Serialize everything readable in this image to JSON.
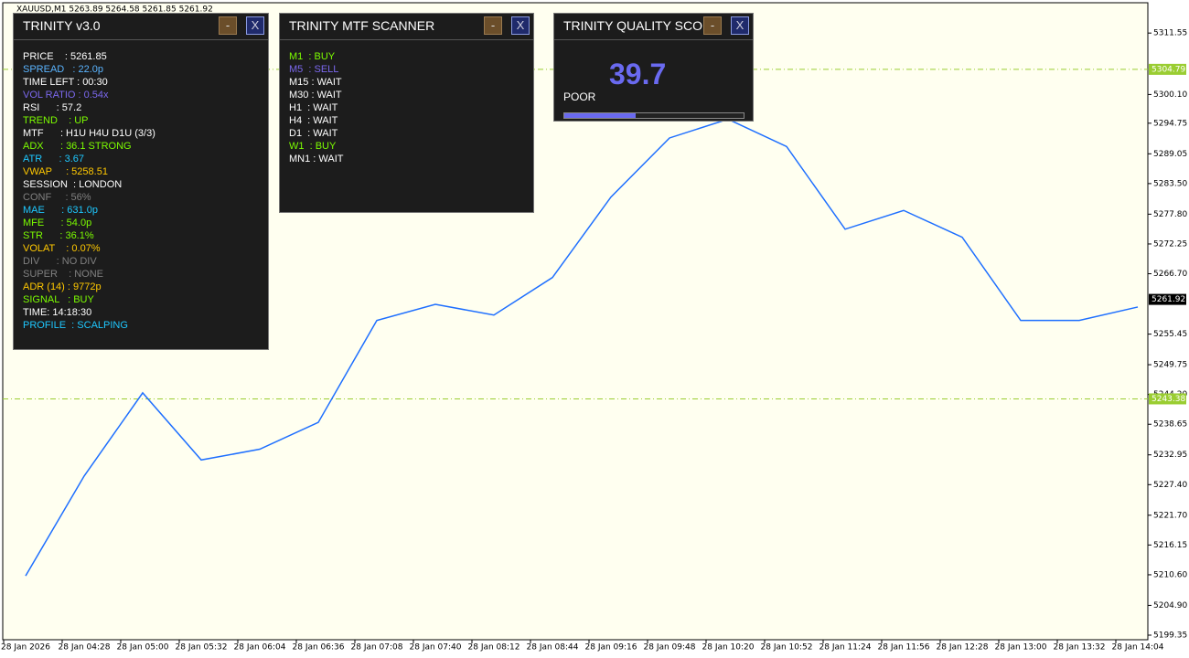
{
  "window_title": "XAUUSD,M1  5263.89 5264.58 5261.85 5261.92",
  "chart_data": {
    "type": "line",
    "categories": [
      "28 Jan 2026",
      "28 Jan 04:28",
      "28 Jan 05:00",
      "28 Jan 05:32",
      "28 Jan 06:04",
      "28 Jan 06:36",
      "28 Jan 07:08",
      "28 Jan 07:40",
      "28 Jan 08:12",
      "28 Jan 08:44",
      "28 Jan 09:16",
      "28 Jan 09:48",
      "28 Jan 10:20",
      "28 Jan 10:52",
      "28 Jan 11:24",
      "28 Jan 11:56",
      "28 Jan 12:28",
      "28 Jan 13:00",
      "28 Jan 13:32",
      "28 Jan 14:04"
    ],
    "values": [
      5210.4,
      5229,
      5244.5,
      5232,
      5234,
      5239,
      5258,
      5261,
      5259,
      5266,
      5281,
      5292,
      5295.5,
      5290.4,
      5275,
      5278.5,
      5273.5,
      5258,
      5258,
      5260.5
    ],
    "color": "#1e6fff",
    "ylim": [
      5198.5,
      5317.2
    ],
    "yticks": [
      5311.55,
      {
        "value": 5300.1,
        "label": "5300.10"
      },
      5294.75,
      5289.05,
      {
        "value": 5283.5,
        "label": "5283.50"
      },
      {
        "value": 5277.8,
        "label": "5277.80"
      },
      5272.25,
      {
        "value": 5266.7,
        "label": "5266.70"
      },
      5255.45,
      5249.75,
      {
        "value": 5244.2,
        "label": "5244.20"
      },
      5238.65,
      5232.95,
      {
        "value": 5227.4,
        "label": "5227.40"
      },
      {
        "value": 5221.7,
        "label": "5221.70"
      },
      5216.15,
      {
        "value": 5210.6,
        "label": "5210.60"
      },
      {
        "value": 5204.9,
        "label": "5204.90"
      },
      5199.35
    ],
    "levels": [
      {
        "value": 5304.79,
        "color": "#9acd32"
      },
      {
        "value": 5243.38,
        "color": "#9acd32"
      }
    ],
    "current_price": 5261.92
  },
  "panels": [
    {
      "title": "TRINITY v3.0",
      "buttons": [
        "-",
        "X"
      ],
      "rows": [
        {
          "text": "PRICE    : 5261.85",
          "color": "#ffffff"
        },
        {
          "text": "SPREAD   : 22.0p",
          "color": "#5ab4ff"
        },
        {
          "text": "TIME LEFT : 00:30",
          "color": "#ffffff"
        },
        {
          "text": "VOL RATIO : 0.54x",
          "color": "#7b68ee"
        },
        {
          "text": "RSI      : 57.2",
          "color": "#ffffff"
        },
        {
          "text": "TREND    : UP",
          "color": "#7cfc00"
        },
        {
          "text": "MTF      : H1U H4U D1U (3/3)",
          "color": "#ffffff"
        },
        {
          "text": "ADX      : 36.1 STRONG",
          "color": "#7cfc00"
        },
        {
          "text": "ATR      : 3.67",
          "color": "#1ec8ff"
        },
        {
          "text": "VWAP     : 5258.51",
          "color": "#ffc800"
        },
        {
          "text": "SESSION  : LONDON",
          "color": "#ffffff"
        },
        {
          "text": "CONF     : 56%",
          "color": "#808080"
        },
        {
          "text": "MAE      : 631.0p",
          "color": "#1ec8ff"
        },
        {
          "text": "MFE      : 54.0p",
          "color": "#7cfc00"
        },
        {
          "text": "STR      : 36.1%",
          "color": "#7cfc00"
        },
        {
          "text": "VOLAT    : 0.07%",
          "color": "#ffc800"
        },
        {
          "text": "DIV      : NO DIV",
          "color": "#808080"
        },
        {
          "text": "SUPER    : NONE",
          "color": "#808080"
        },
        {
          "text": "ADR (14) : 9772p",
          "color": "#ffc800"
        },
        {
          "text": "SIGNAL   : BUY",
          "color": "#7cfc00"
        },
        {
          "text": "TIME: 14:18:30",
          "color": "#ffffff"
        },
        {
          "text": "PROFILE  : SCALPING",
          "color": "#1ec8ff"
        }
      ]
    },
    {
      "title": "TRINITY MTF SCANNER",
      "buttons": [
        "-",
        "X"
      ],
      "rows": [
        {
          "text": "M1  : BUY",
          "color": "#7cfc00"
        },
        {
          "text": "M5  : SELL",
          "color": "#7b68ee"
        },
        {
          "text": "M15 : WAIT",
          "color": "#ffffff"
        },
        {
          "text": "M30 : WAIT",
          "color": "#ffffff"
        },
        {
          "text": "H1  : WAIT",
          "color": "#ffffff"
        },
        {
          "text": "H4  : WAIT",
          "color": "#ffffff"
        },
        {
          "text": "D1  : WAIT",
          "color": "#ffffff"
        },
        {
          "text": "W1  : BUY",
          "color": "#7cfc00"
        },
        {
          "text": "MN1 : WAIT",
          "color": "#ffffff"
        }
      ]
    },
    {
      "title": "TRINITY QUALITY SCORE",
      "buttons": [
        "-",
        "X"
      ],
      "score": 39.7,
      "grade": "POOR",
      "color": "#6a6af0"
    }
  ]
}
